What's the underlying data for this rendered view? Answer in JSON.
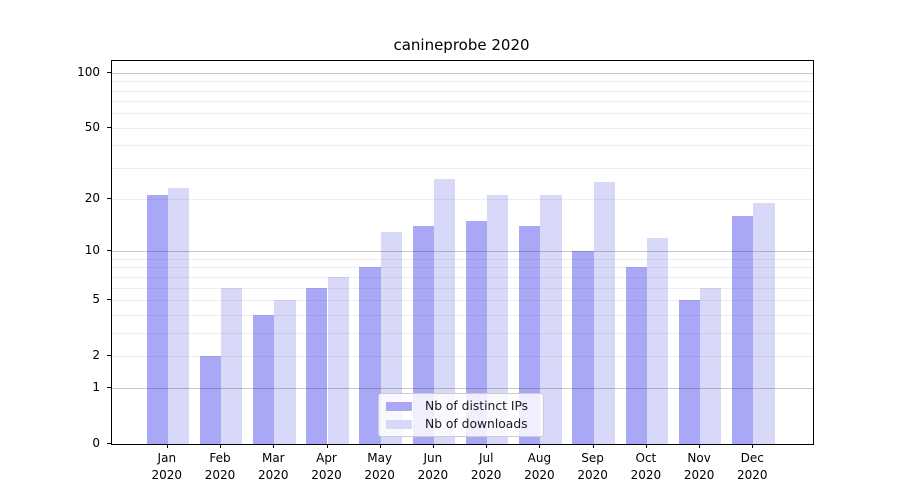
{
  "title": "canineprobe 2020",
  "chart_data": {
    "type": "bar",
    "title": "canineprobe 2020",
    "categories": [
      "Jan 2020",
      "Feb 2020",
      "Mar 2020",
      "Apr 2020",
      "May 2020",
      "Jun 2020",
      "Jul 2020",
      "Aug 2020",
      "Sep 2020",
      "Oct 2020",
      "Nov 2020",
      "Dec 2020"
    ],
    "months": [
      "Jan",
      "Feb",
      "Mar",
      "Apr",
      "May",
      "Jun",
      "Jul",
      "Aug",
      "Sep",
      "Oct",
      "Nov",
      "Dec"
    ],
    "year_label": "2020",
    "series": [
      {
        "name": "Nb of distinct IPs",
        "color": "#a8a8f6",
        "values": [
          21,
          2,
          4,
          6,
          8,
          14,
          15,
          14,
          10,
          8,
          5,
          16
        ]
      },
      {
        "name": "Nb of downloads",
        "color": "#d8d8f8",
        "values": [
          23,
          6,
          5,
          7,
          13,
          26,
          21,
          21,
          25,
          12,
          6,
          19
        ]
      }
    ],
    "xlabel": "",
    "ylabel": "",
    "yscale": "log1p",
    "ylim": [
      0,
      116
    ],
    "yticks": [
      0,
      1,
      2,
      5,
      10,
      20,
      50,
      100
    ],
    "gridlines_major": [
      1,
      10,
      100
    ],
    "gridlines_minor": [
      2,
      3,
      4,
      5,
      6,
      7,
      8,
      9,
      20,
      30,
      40,
      50,
      60,
      70,
      80,
      90
    ],
    "grid": true,
    "legend_position": "lower-center-inside"
  },
  "legend": {
    "items": [
      {
        "label": "Nb of distinct IPs",
        "color": "#a8a8f6"
      },
      {
        "label": "Nb of downloads",
        "color": "#d8d8f8"
      }
    ]
  },
  "colors": {
    "series_ips": "#a8a8f6",
    "series_downloads": "#d8d8f8",
    "grid_major": "rgba(70,70,70,0.30)",
    "grid_minor": "rgba(90,90,90,0.10)",
    "axis": "#000000",
    "background": "#ffffff"
  }
}
